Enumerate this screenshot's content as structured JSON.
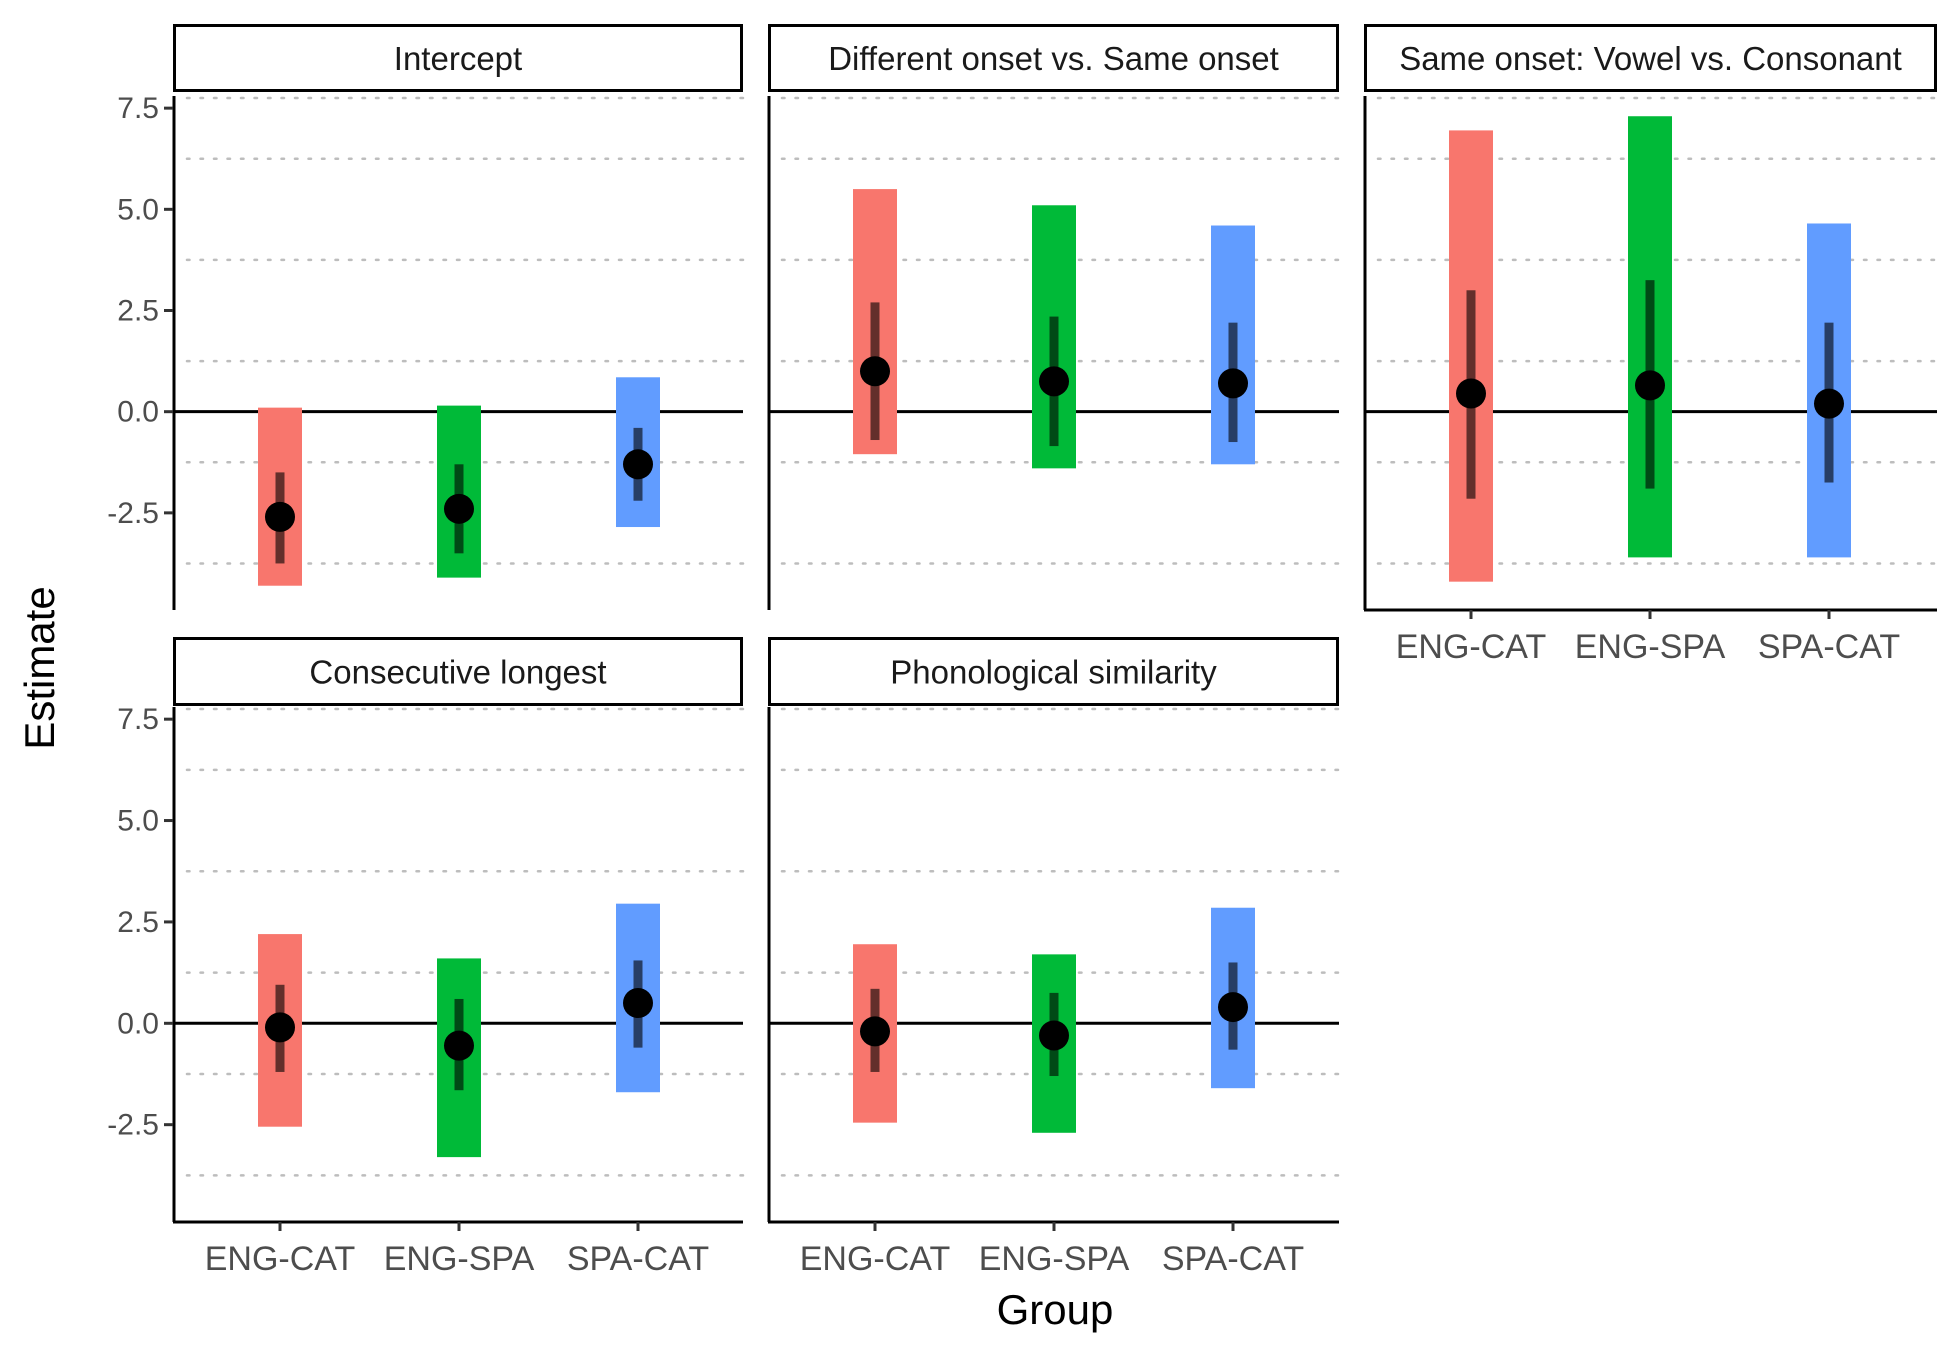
{
  "chart_data": {
    "type": "interval",
    "xlabel": "Group",
    "ylabel": "Estimate",
    "ylim": [
      -4.9,
      7.8
    ],
    "y_ticks": [
      "7.5",
      "5.0",
      "2.5",
      "0.0",
      "-2.5"
    ],
    "y_tick_values": [
      7.5,
      5.0,
      2.5,
      0.0,
      -2.5
    ],
    "minor_gridlines": [
      -3.75,
      -1.25,
      1.25,
      3.75,
      6.25,
      7.75
    ],
    "reference_line": 0,
    "groups": [
      "ENG-CAT",
      "ENG-SPA",
      "SPA-CAT"
    ],
    "group_colors": {
      "ENG-CAT": "#F8766D",
      "ENG-SPA": "#00BA38",
      "SPA-CAT": "#619CFF"
    },
    "panels": [
      {
        "title": "Intercept",
        "estimates": [
          {
            "group": "ENG-CAT",
            "estimate": -2.6,
            "inner": [
              -3.75,
              -1.5
            ],
            "outer": [
              -4.3,
              0.1
            ]
          },
          {
            "group": "ENG-SPA",
            "estimate": -2.4,
            "inner": [
              -3.5,
              -1.3
            ],
            "outer": [
              -4.1,
              0.15
            ]
          },
          {
            "group": "SPA-CAT",
            "estimate": -1.3,
            "inner": [
              -2.2,
              -0.4
            ],
            "outer": [
              -2.85,
              0.85
            ]
          }
        ]
      },
      {
        "title": "Different onset vs. Same onset",
        "estimates": [
          {
            "group": "ENG-CAT",
            "estimate": 1.0,
            "inner": [
              -0.7,
              2.7
            ],
            "outer": [
              -1.05,
              5.5
            ]
          },
          {
            "group": "ENG-SPA",
            "estimate": 0.75,
            "inner": [
              -0.85,
              2.35
            ],
            "outer": [
              -1.4,
              5.1
            ]
          },
          {
            "group": "SPA-CAT",
            "estimate": 0.7,
            "inner": [
              -0.75,
              2.2
            ],
            "outer": [
              -1.3,
              4.6
            ]
          }
        ]
      },
      {
        "title": "Same onset: Vowel vs. Consonant",
        "estimates": [
          {
            "group": "ENG-CAT",
            "estimate": 0.45,
            "inner": [
              -2.15,
              3.0
            ],
            "outer": [
              -4.2,
              6.95
            ]
          },
          {
            "group": "ENG-SPA",
            "estimate": 0.65,
            "inner": [
              -1.9,
              3.25
            ],
            "outer": [
              -3.6,
              7.3
            ]
          },
          {
            "group": "SPA-CAT",
            "estimate": 0.2,
            "inner": [
              -1.75,
              2.2
            ],
            "outer": [
              -3.6,
              4.65
            ]
          }
        ]
      },
      {
        "title": "Consecutive longest",
        "estimates": [
          {
            "group": "ENG-CAT",
            "estimate": -0.1,
            "inner": [
              -1.2,
              0.95
            ],
            "outer": [
              -2.55,
              2.2
            ]
          },
          {
            "group": "ENG-SPA",
            "estimate": -0.55,
            "inner": [
              -1.65,
              0.6
            ],
            "outer": [
              -3.3,
              1.6
            ]
          },
          {
            "group": "SPA-CAT",
            "estimate": 0.5,
            "inner": [
              -0.6,
              1.55
            ],
            "outer": [
              -1.7,
              2.95
            ]
          }
        ]
      },
      {
        "title": "Phonological similarity",
        "estimates": [
          {
            "group": "ENG-CAT",
            "estimate": -0.2,
            "inner": [
              -1.2,
              0.85
            ],
            "outer": [
              -2.45,
              1.95
            ]
          },
          {
            "group": "ENG-SPA",
            "estimate": -0.3,
            "inner": [
              -1.3,
              0.75
            ],
            "outer": [
              -2.7,
              1.7
            ]
          },
          {
            "group": "SPA-CAT",
            "estimate": 0.4,
            "inner": [
              -0.65,
              1.5
            ],
            "outer": [
              -1.6,
              2.85
            ]
          }
        ]
      }
    ]
  }
}
